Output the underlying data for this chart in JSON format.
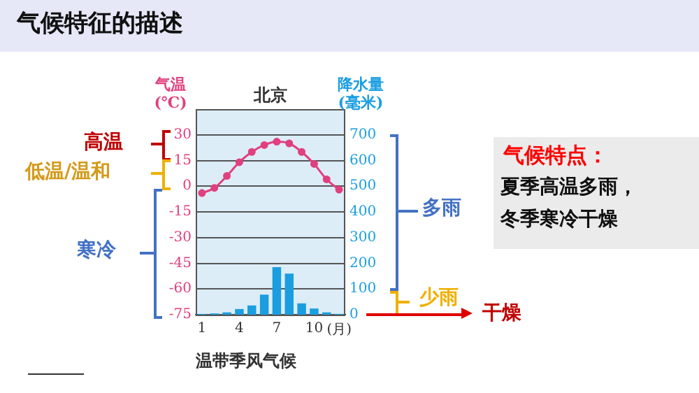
{
  "chart_data": {
    "type": "bar",
    "title": "北京",
    "ylabel": "气温\n(℃)",
    "y2label": "降水量\n(毫米)",
    "xlabel": "(月)",
    "categories": [
      "1",
      null,
      null,
      "4",
      null,
      null,
      "7",
      null,
      null,
      "10",
      null,
      null
    ],
    "series": [
      {
        "type": "line",
        "axis": "y",
        "color": "#e0407f",
        "marker": "circle",
        "values": [
          -4,
          -1,
          6,
          14,
          20,
          24,
          26,
          25,
          20,
          13,
          4,
          -2
        ]
      },
      {
        "axis": "y2",
        "color": "#1a9ee0",
        "values": [
          3,
          5,
          9,
          22,
          36,
          78,
          185,
          160,
          44,
          24,
          9,
          3
        ]
      }
    ],
    "ylim": [
      -75,
      45
    ],
    "yticks": [
      -75,
      -60,
      -45,
      -30,
      -15,
      0,
      15,
      30
    ],
    "y2lim": [
      0,
      800
    ],
    "y2ticks": [
      0,
      100,
      200,
      300,
      400,
      500,
      600,
      700
    ],
    "grid": "y",
    "legend": false,
    "annotations": [
      "气候特征的描述",
      "高温",
      "低温/温和",
      "寒冷",
      "多雨",
      "少雨",
      "干燥",
      "气候特点：",
      "夏季高温多雨，",
      "冬季寒冷干燥",
      "温带季风气候"
    ]
  }
}
